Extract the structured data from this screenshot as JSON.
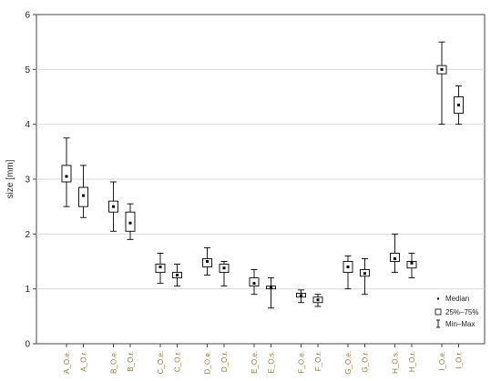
{
  "chart_data": {
    "type": "boxplot",
    "ylabel": "size [mm]",
    "ylim": [
      0,
      6
    ],
    "yticks": [
      0,
      1,
      2,
      3,
      4,
      5,
      6
    ],
    "grid": true,
    "legend_position": "bottom-right",
    "legend": {
      "median": "Median",
      "box": "25%–75%",
      "whisker": "Min–Max"
    },
    "categories": [
      "A_O.e.",
      "A_O.r.",
      "B_O.e.",
      "B_O.r.",
      "C_O.e.",
      "C_O.r.",
      "D_O.e.",
      "D_O.r.",
      "E_O.e.",
      "E_O.s.",
      "F_O.e.",
      "F_O.r.",
      "G_O.e.",
      "G_O.r.",
      "H_O.s.",
      "H_O.r.",
      "I_O.e.",
      "I_O.r."
    ],
    "boxes": [
      {
        "min": 2.5,
        "q1": 2.95,
        "median": 3.05,
        "q3": 3.25,
        "max": 3.75
      },
      {
        "min": 2.3,
        "q1": 2.5,
        "median": 2.7,
        "q3": 2.85,
        "max": 3.25
      },
      {
        "min": 2.05,
        "q1": 2.4,
        "median": 2.5,
        "q3": 2.6,
        "max": 2.95
      },
      {
        "min": 1.9,
        "q1": 2.05,
        "median": 2.2,
        "q3": 2.4,
        "max": 2.55
      },
      {
        "min": 1.1,
        "q1": 1.3,
        "median": 1.4,
        "q3": 1.45,
        "max": 1.65
      },
      {
        "min": 1.05,
        "q1": 1.2,
        "median": 1.25,
        "q3": 1.3,
        "max": 1.45
      },
      {
        "min": 1.25,
        "q1": 1.4,
        "median": 1.5,
        "q3": 1.55,
        "max": 1.75
      },
      {
        "min": 1.05,
        "q1": 1.3,
        "median": 1.38,
        "q3": 1.45,
        "max": 1.5
      },
      {
        "min": 0.9,
        "q1": 1.05,
        "median": 1.1,
        "q3": 1.2,
        "max": 1.35
      },
      {
        "min": 0.65,
        "q1": 1.0,
        "median": 1.03,
        "q3": 1.05,
        "max": 1.2
      },
      {
        "min": 0.75,
        "q1": 0.85,
        "median": 0.88,
        "q3": 0.92,
        "max": 0.98
      },
      {
        "min": 0.68,
        "q1": 0.75,
        "median": 0.8,
        "q3": 0.85,
        "max": 0.9
      },
      {
        "min": 1.0,
        "q1": 1.3,
        "median": 1.4,
        "q3": 1.5,
        "max": 1.6
      },
      {
        "min": 0.9,
        "q1": 1.23,
        "median": 1.28,
        "q3": 1.35,
        "max": 1.55
      },
      {
        "min": 1.3,
        "q1": 1.5,
        "median": 1.55,
        "q3": 1.65,
        "max": 2.0
      },
      {
        "min": 1.2,
        "q1": 1.38,
        "median": 1.47,
        "q3": 1.5,
        "max": 1.65
      },
      {
        "min": 4.0,
        "q1": 4.92,
        "median": 5.0,
        "q3": 5.07,
        "max": 5.5
      },
      {
        "min": 4.0,
        "q1": 4.2,
        "median": 4.35,
        "q3": 4.5,
        "max": 4.7
      }
    ]
  }
}
